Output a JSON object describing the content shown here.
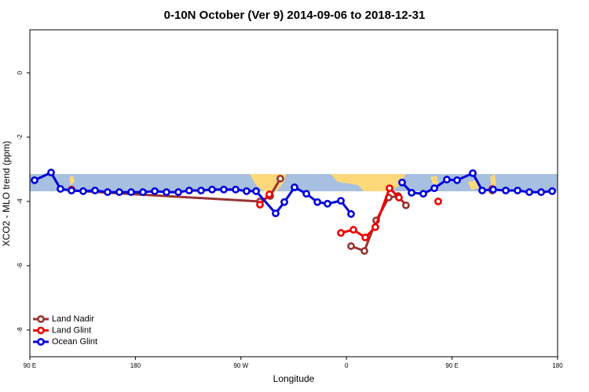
{
  "chart_data": {
    "type": "line",
    "title": "0-10N October (Ver 9)   2014-09-06 to 2018-12-31",
    "x_label": "Longitude",
    "y_label": "XCO2 - MLO trend (ppm)",
    "xlim": [
      90,
      540
    ],
    "ylim": [
      -8.83,
      1.34
    ],
    "xticks": [
      {
        "value": 90,
        "label": "90 E"
      },
      180,
      {
        "value": 270,
        "label": "90 W"
      },
      {
        "value": 360,
        "label": "0"
      },
      {
        "value": 450,
        "label": "90 E"
      },
      {
        "value": 540,
        "label": "180"
      }
    ],
    "yticks": [
      0,
      -2,
      -4,
      -6,
      -8
    ],
    "legend": "bottom-left",
    "series": [
      {
        "name": "Land Nadir",
        "color": "#993333",
        "x": [
          125.5,
          286.2,
          294.9,
          303.6,
          null,
          363.9,
          375.3,
          385.3,
          396.0,
          404.0,
          410.7,
          null,
          484.4
        ],
        "values": [
          -3.66,
          -4.0,
          -3.83,
          -3.29,
          null,
          -5.39,
          -5.54,
          -4.59,
          -3.88,
          -3.83,
          -4.12,
          null,
          -3.66
        ]
      },
      {
        "name": "Land Glint",
        "color": "#ee0000",
        "x": [
          125.5,
          null,
          286.2,
          294.2,
          null,
          355.2,
          365.9,
          376.0,
          384.6,
          396.7,
          404.7,
          null,
          438.2,
          null,
          484.4
        ],
        "values": [
          -3.63,
          null,
          -4.1,
          -3.78,
          null,
          -4.98,
          -4.88,
          -5.12,
          -4.8,
          -3.59,
          -3.88,
          null,
          -4.0,
          null,
          -3.61
        ]
      },
      {
        "name": "Ocean Glint",
        "color": "#0000dd",
        "x": [
          94.0,
          108.1,
          116.1,
          125.5,
          135.5,
          145.6,
          156.3,
          166.3,
          176.4,
          186.4,
          196.5,
          206.5,
          216.6,
          225.9,
          236.0,
          245.4,
          255.4,
          265.5,
          274.8,
          282.9,
          299.6,
          307.0,
          315.7,
          325.8,
          335.2,
          343.8,
          355.2,
          363.9,
          null,
          407.4,
          415.5,
          425.5,
          434.9,
          445.6,
          454.3,
          467.7,
          475.7,
          485.1,
          495.8,
          505.9,
          515.9,
          526.0,
          535.4
        ],
        "values": [
          -3.34,
          -3.1,
          -3.61,
          -3.66,
          -3.68,
          -3.66,
          -3.71,
          -3.71,
          -3.71,
          -3.71,
          -3.68,
          -3.71,
          -3.71,
          -3.66,
          -3.66,
          -3.63,
          -3.63,
          -3.63,
          -3.68,
          -3.68,
          -4.37,
          -4.02,
          -3.56,
          -3.76,
          -4.02,
          -4.07,
          -3.98,
          -4.39,
          null,
          -3.41,
          -3.73,
          -3.76,
          -3.59,
          -3.32,
          -3.34,
          -3.12,
          -3.66,
          -3.63,
          -3.66,
          -3.66,
          -3.71,
          -3.71,
          -3.68
        ]
      }
    ]
  }
}
